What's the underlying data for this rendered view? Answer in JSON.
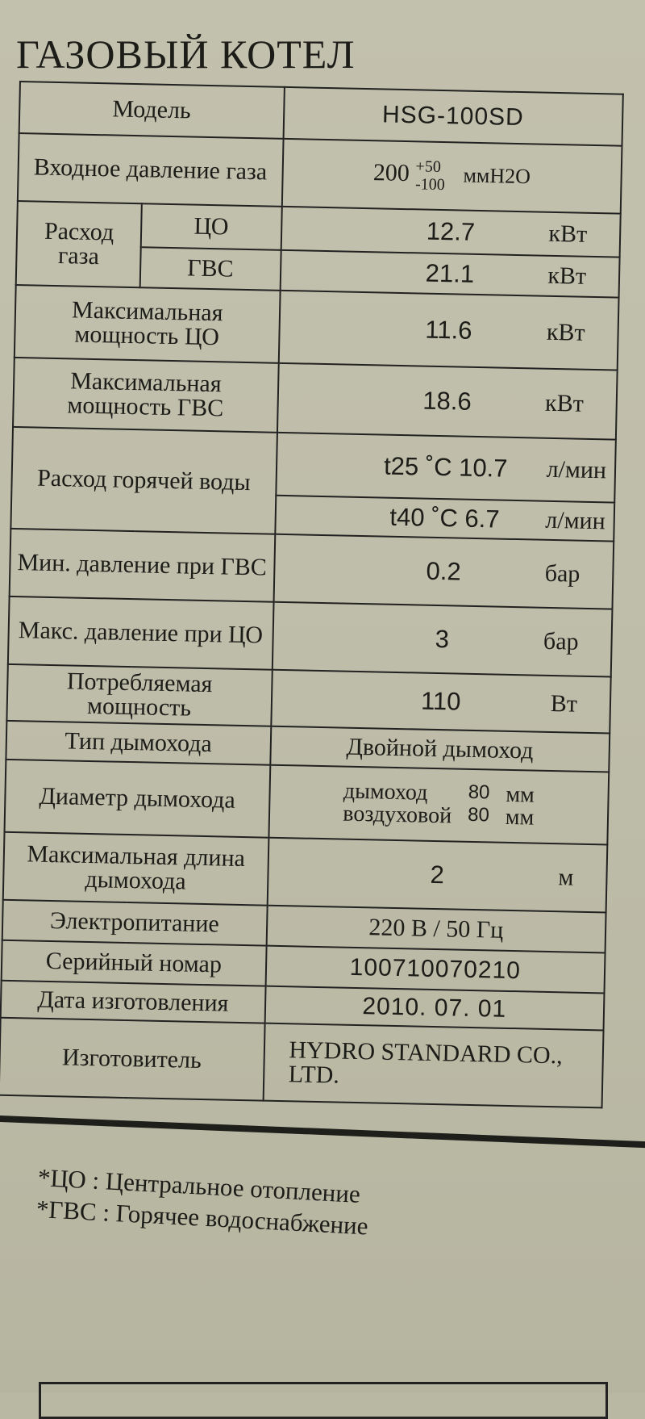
{
  "title": "ГАЗОВЫЙ КОТЕЛ",
  "rows": {
    "model": {
      "label": "Модель",
      "value": "HSG-100SD"
    },
    "inlet_pressure": {
      "label": "Входное давление газа",
      "value": "200",
      "tol_plus": "+50",
      "tol_minus": "-100",
      "unit": "ммH2O"
    },
    "gas_flow": {
      "label": "Расход газа",
      "co_label": "ЦО",
      "co_value": "12.7",
      "co_unit": "кВт",
      "gvs_label": "ГВС",
      "gvs_value": "21.1",
      "gvs_unit": "кВт"
    },
    "max_power_co": {
      "label": "Максимальная мощность ЦО",
      "value": "11.6",
      "unit": "кВт"
    },
    "max_power_gvs": {
      "label": "Максимальная мощность ГВС",
      "value": "18.6",
      "unit": "кВт"
    },
    "hot_water": {
      "label": "Расход горячей воды",
      "v1": "t25 ˚C 10.7",
      "u1": "л/мин",
      "v2": "t40 ˚C 6.7",
      "u2": "л/мин"
    },
    "min_pressure": {
      "label": "Мин. давление при ГВС",
      "value": "0.2",
      "unit": "бар"
    },
    "max_pressure": {
      "label": "Макс. давление при ЦО",
      "value": "3",
      "unit": "бар"
    },
    "consumption": {
      "label": "Потребляемая мощность",
      "value": "110",
      "unit": "Вт"
    },
    "flue_type": {
      "label": "Тип дымохода",
      "value": "Двойной дымоход"
    },
    "flue_diameter": {
      "label": "Диаметр дымохода",
      "a_label": "дымоход",
      "a_value": "80",
      "a_unit": "мм",
      "b_label": "воздуховой",
      "b_value": "80",
      "b_unit": "мм"
    },
    "flue_length": {
      "label": "Максимальная длина дымохода",
      "value": "2",
      "unit": "м"
    },
    "power_supply": {
      "label": "Электропитание",
      "value": "220 В / 50 Гц"
    },
    "serial": {
      "label": "Серийный номар",
      "value": "100710070210"
    },
    "date": {
      "label": "Дата изготовления",
      "value": "2010. 07. 01"
    },
    "manufacturer": {
      "label": "Изготовитель",
      "value": "HYDRO STANDARD CO., LTD."
    }
  },
  "notes": [
    "*ЦО : Центральное отопление",
    "*ГВС : Горячее водоснабжение"
  ]
}
